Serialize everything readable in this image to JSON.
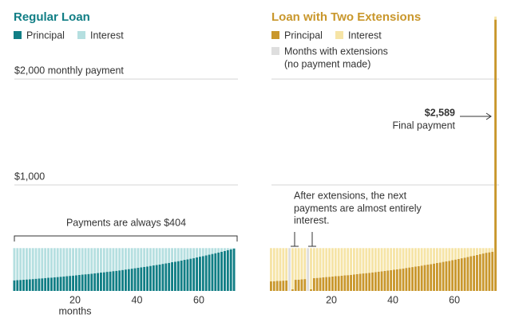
{
  "chart_data": [
    {
      "type": "bar",
      "stacked": true,
      "title": "Regular Loan",
      "xlabel": "months",
      "annotation": "Payments are always $404",
      "x": [
        1,
        2,
        3,
        4,
        5,
        6,
        7,
        8,
        9,
        10,
        11,
        12,
        13,
        14,
        15,
        16,
        17,
        18,
        19,
        20,
        21,
        22,
        23,
        24,
        25,
        26,
        27,
        28,
        29,
        30,
        31,
        32,
        33,
        34,
        35,
        36,
        37,
        38,
        39,
        40,
        41,
        42,
        43,
        44,
        45,
        46,
        47,
        48,
        49,
        50,
        51,
        52,
        53,
        54,
        55,
        56,
        57,
        58,
        59,
        60,
        61,
        62,
        63,
        64,
        65,
        66,
        67,
        68,
        69,
        70,
        71,
        72
      ],
      "xlim": [
        0,
        72
      ],
      "xticks": [
        20,
        40,
        60
      ],
      "ylim": [
        0,
        2700
      ],
      "yticks": [
        {
          "value": 1000,
          "label": "$1,000"
        },
        {
          "value": 2000,
          "label": "$2,000 monthly payment"
        }
      ],
      "grid": true,
      "series": [
        {
          "name": "Principal",
          "color": "#117e85",
          "values": [
            100,
            102,
            104,
            106,
            108,
            110,
            112,
            115,
            117,
            119,
            122,
            124,
            126,
            129,
            131,
            134,
            137,
            139,
            142,
            145,
            148,
            151,
            154,
            157,
            160,
            163,
            166,
            169,
            173,
            176,
            180,
            183,
            187,
            190,
            194,
            198,
            202,
            206,
            210,
            214,
            218,
            223,
            227,
            231,
            236,
            241,
            245,
            250,
            255,
            260,
            265,
            271,
            276,
            281,
            287,
            293,
            298,
            304,
            310,
            316,
            323,
            329,
            335,
            342,
            349,
            356,
            363,
            370,
            377,
            385,
            392,
            400
          ]
        },
        {
          "name": "Interest",
          "color": "#b5dfe0",
          "values": [
            304,
            302,
            300,
            298,
            296,
            294,
            292,
            289,
            287,
            285,
            282,
            280,
            278,
            275,
            273,
            270,
            267,
            265,
            262,
            259,
            256,
            253,
            250,
            247,
            244,
            241,
            238,
            235,
            231,
            228,
            224,
            221,
            217,
            214,
            210,
            206,
            202,
            198,
            194,
            190,
            186,
            181,
            177,
            173,
            168,
            163,
            159,
            154,
            149,
            144,
            139,
            133,
            128,
            123,
            117,
            111,
            106,
            100,
            94,
            88,
            81,
            75,
            69,
            62,
            55,
            48,
            41,
            34,
            27,
            19,
            12,
            4
          ]
        }
      ]
    },
    {
      "type": "bar",
      "stacked": true,
      "title": "Loan with Two Extensions",
      "annotation_final": {
        "value_label": "$2,589",
        "text": "Final payment"
      },
      "annotation_note": [
        "After extensions, the next",
        "payments are almost entirely",
        "interest."
      ],
      "x": [
        1,
        2,
        3,
        4,
        5,
        6,
        7,
        8,
        9,
        10,
        11,
        12,
        13,
        14,
        15,
        16,
        17,
        18,
        19,
        20,
        21,
        22,
        23,
        24,
        25,
        26,
        27,
        28,
        29,
        30,
        31,
        32,
        33,
        34,
        35,
        36,
        37,
        38,
        39,
        40,
        41,
        42,
        43,
        44,
        45,
        46,
        47,
        48,
        49,
        50,
        51,
        52,
        53,
        54,
        55,
        56,
        57,
        58,
        59,
        60,
        61,
        62,
        63,
        64,
        65,
        66,
        67,
        68,
        69,
        70,
        71,
        72,
        73,
        74
      ],
      "xlim": [
        0,
        74
      ],
      "xticks": [
        20,
        40,
        60
      ],
      "ylim": [
        0,
        2700
      ],
      "yticks": [
        1000,
        2000
      ],
      "grid": true,
      "series": [
        {
          "name": "Principal",
          "color": "#c9972c",
          "values": [
            90,
            92,
            94,
            95,
            97,
            99,
            null,
            15,
            105,
            107,
            110,
            112,
            null,
            15,
            121,
            123,
            125,
            128,
            131,
            133,
            136,
            139,
            141,
            144,
            147,
            149,
            152,
            156,
            158,
            162,
            165,
            168,
            171,
            175,
            178,
            182,
            185,
            189,
            193,
            196,
            201,
            204,
            208,
            212,
            217,
            221,
            225,
            230,
            234,
            239,
            244,
            248,
            253,
            258,
            264,
            268,
            274,
            279,
            284,
            291,
            296,
            302,
            308,
            314,
            320,
            327,
            333,
            339,
            347,
            353,
            360,
            364,
            370,
            2560
          ]
        },
        {
          "name": "Interest",
          "color": "#f6e4a6",
          "values": [
            314,
            312,
            310,
            309,
            307,
            305,
            null,
            389,
            299,
            297,
            294,
            292,
            null,
            389,
            283,
            281,
            279,
            276,
            273,
            271,
            268,
            265,
            263,
            260,
            257,
            255,
            252,
            248,
            246,
            242,
            239,
            236,
            233,
            229,
            226,
            222,
            219,
            215,
            211,
            208,
            203,
            200,
            196,
            192,
            187,
            183,
            179,
            174,
            170,
            165,
            160,
            156,
            151,
            146,
            140,
            136,
            130,
            125,
            120,
            113,
            108,
            102,
            96,
            90,
            84,
            77,
            71,
            65,
            57,
            51,
            44,
            40,
            34,
            29
          ]
        },
        {
          "name": "Months with extensions",
          "legend_note": "(no payment made)",
          "color": "#dedede",
          "values": [
            null,
            null,
            null,
            null,
            null,
            null,
            404,
            null,
            null,
            null,
            null,
            null,
            404,
            null,
            null,
            null,
            null,
            null,
            null,
            null,
            null,
            null,
            null,
            null,
            null,
            null,
            null,
            null,
            null,
            null,
            null,
            null,
            null,
            null,
            null,
            null,
            null,
            null,
            null,
            null,
            null,
            null,
            null,
            null,
            null,
            null,
            null,
            null,
            null,
            null,
            null,
            null,
            null,
            null,
            null,
            null,
            null,
            null,
            null,
            null,
            null,
            null,
            null,
            null,
            null,
            null,
            null,
            null,
            null,
            null,
            null,
            null,
            null,
            null
          ]
        }
      ]
    }
  ]
}
